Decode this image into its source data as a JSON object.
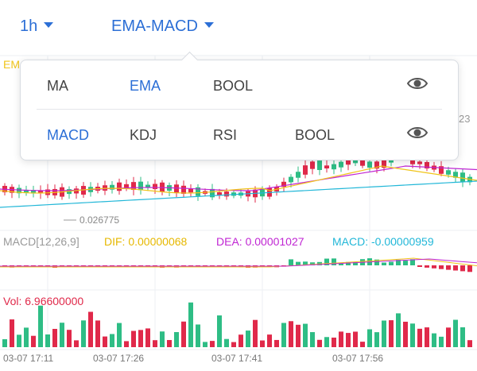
{
  "toolbar": {
    "interval": "1h",
    "indicator": "EMA-MACD"
  },
  "popup": {
    "row1": [
      "MA",
      "EMA",
      "BOOL"
    ],
    "row2": [
      "MACD",
      "KDJ",
      "RSI",
      "BOOL"
    ],
    "active_row1": "EMA",
    "active_row2": "MACD"
  },
  "price": {
    "ema_partial": "EM",
    "right_edge_value": "23",
    "low_marker": "0.026775"
  },
  "macd": {
    "name": "MACD[12,26,9]",
    "dif": "DIF: 0.00000068",
    "dea": "DEA: 0.00001027",
    "macd": "MACD: -0.00000959"
  },
  "volume": {
    "label": "Vol: 6.96600000"
  },
  "time_labels": [
    "03-07 17:11",
    "03-07 17:26",
    "03-07 17:41",
    "03-07 17:56"
  ],
  "colors": {
    "accent": "#2c6fd6",
    "up": "#2ebd85",
    "down": "#e0294a",
    "dif": "#f0c419",
    "dea": "#c026d3",
    "macd": "#22b7d8"
  }
}
